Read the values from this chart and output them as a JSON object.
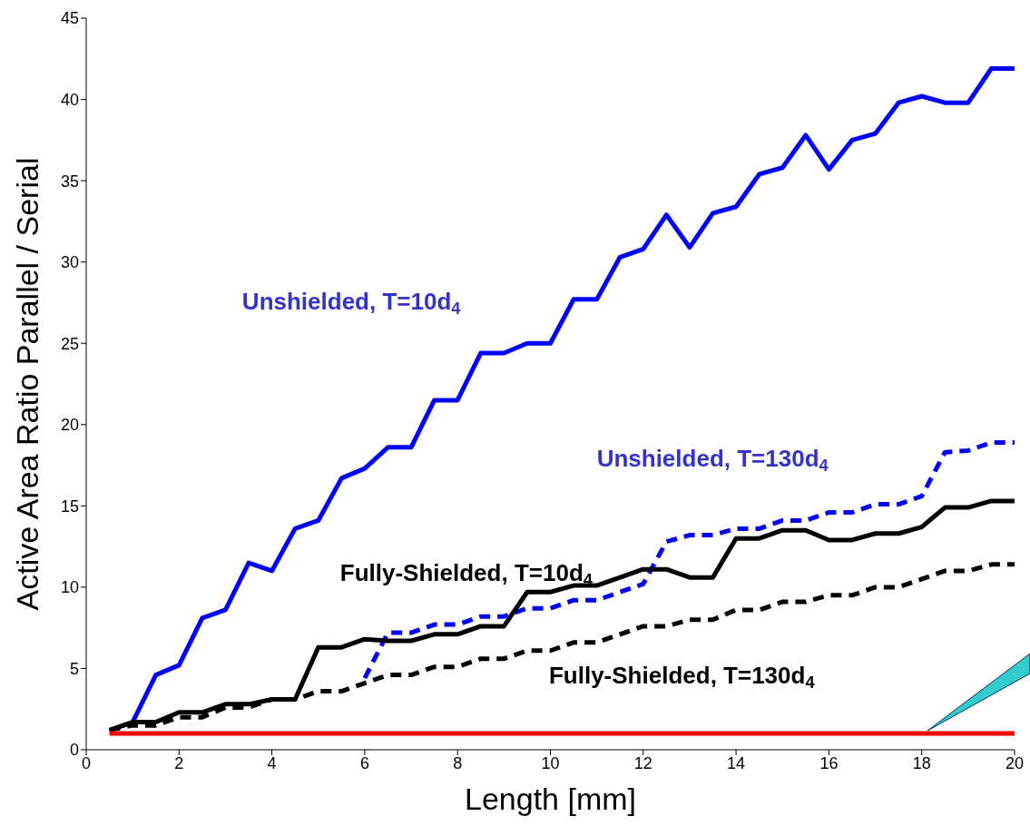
{
  "chart_data": {
    "type": "line",
    "xlabel": "Length [mm]",
    "ylabel": "Active Area Ratio Parallel / Serial",
    "x": [
      0.5,
      1,
      1.5,
      2,
      2.5,
      3,
      3.5,
      4,
      4.5,
      5,
      5.5,
      6,
      6.5,
      7,
      7.5,
      8,
      8.5,
      9,
      9.5,
      10,
      10.5,
      11,
      11.5,
      12,
      12.5,
      13,
      13.5,
      14,
      14.5,
      15,
      15.5,
      16,
      16.5,
      17,
      17.5,
      18,
      18.5,
      19,
      19.5,
      20
    ],
    "series": [
      {
        "name": "Unshielded, T=10d$_{4}$",
        "color": "#0000ff",
        "line_style": "solid",
        "values": [
          1.2,
          1.7,
          4.6,
          5.2,
          8.1,
          8.6,
          11.5,
          11.0,
          13.6,
          14.1,
          16.7,
          17.3,
          18.6,
          18.6,
          21.5,
          21.5,
          24.4,
          24.4,
          25.0,
          25.0,
          27.7,
          27.7,
          30.3,
          30.8,
          32.9,
          30.9,
          33.0,
          33.4,
          35.4,
          35.8,
          37.8,
          35.7,
          37.5,
          37.9,
          39.8,
          40.2,
          39.8,
          39.8,
          41.9,
          41.9
        ]
      },
      {
        "name": "Unshielded, T=130d$_{4}$",
        "color": "#0000ff",
        "line_style": "dashed",
        "values": [
          null,
          null,
          null,
          null,
          null,
          null,
          null,
          null,
          null,
          null,
          null,
          4.4,
          7.2,
          7.2,
          7.7,
          7.7,
          8.2,
          8.2,
          8.7,
          8.7,
          9.2,
          9.2,
          9.7,
          10.2,
          12.8,
          13.2,
          13.2,
          13.6,
          13.6,
          14.1,
          14.1,
          14.6,
          14.6,
          15.1,
          15.1,
          15.6,
          18.3,
          18.4,
          18.9,
          18.9
        ]
      },
      {
        "name": "Fully-Shielded, T=10d$_{4}$",
        "color": "#000000",
        "line_style": "solid",
        "values": [
          1.2,
          1.7,
          1.7,
          2.3,
          2.3,
          2.8,
          2.8,
          3.1,
          3.1,
          6.3,
          6.3,
          6.8,
          6.7,
          6.7,
          7.1,
          7.1,
          7.6,
          7.6,
          9.7,
          9.7,
          10.1,
          10.1,
          10.6,
          11.1,
          11.1,
          10.6,
          10.6,
          13.0,
          13.0,
          13.5,
          13.5,
          12.9,
          12.9,
          13.3,
          13.3,
          13.7,
          14.9,
          14.9,
          15.3,
          15.3
        ]
      },
      {
        "name": "Fully-Shielded, T=130d$_{4}$",
        "color": "#000000",
        "line_style": "dashed",
        "values": [
          1.2,
          1.5,
          1.5,
          2.0,
          2.0,
          2.6,
          2.6,
          3.1,
          3.1,
          3.6,
          3.6,
          4.1,
          4.6,
          4.6,
          5.1,
          5.1,
          5.6,
          5.6,
          6.1,
          6.1,
          6.6,
          6.6,
          7.1,
          7.6,
          7.6,
          8.0,
          8.0,
          8.6,
          8.6,
          9.1,
          9.1,
          9.5,
          9.5,
          10.0,
          10.0,
          10.5,
          11.0,
          11.0,
          11.4,
          11.4
        ]
      },
      {
        "color": "#ff0000",
        "line_style": "solid",
        "x": [
          0.5,
          20
        ],
        "values": [
          1.0,
          1.0
        ]
      }
    ],
    "xlim": [
      0,
      20
    ],
    "xticks": [
      0,
      2,
      4,
      6,
      8,
      10,
      12,
      14,
      16,
      18,
      20
    ],
    "ylim": [
      0,
      45
    ],
    "yticks": [
      0,
      5,
      10,
      15,
      20,
      25,
      30,
      35,
      40,
      45
    ],
    "grid": false,
    "legend": false,
    "marker": "none"
  }
}
